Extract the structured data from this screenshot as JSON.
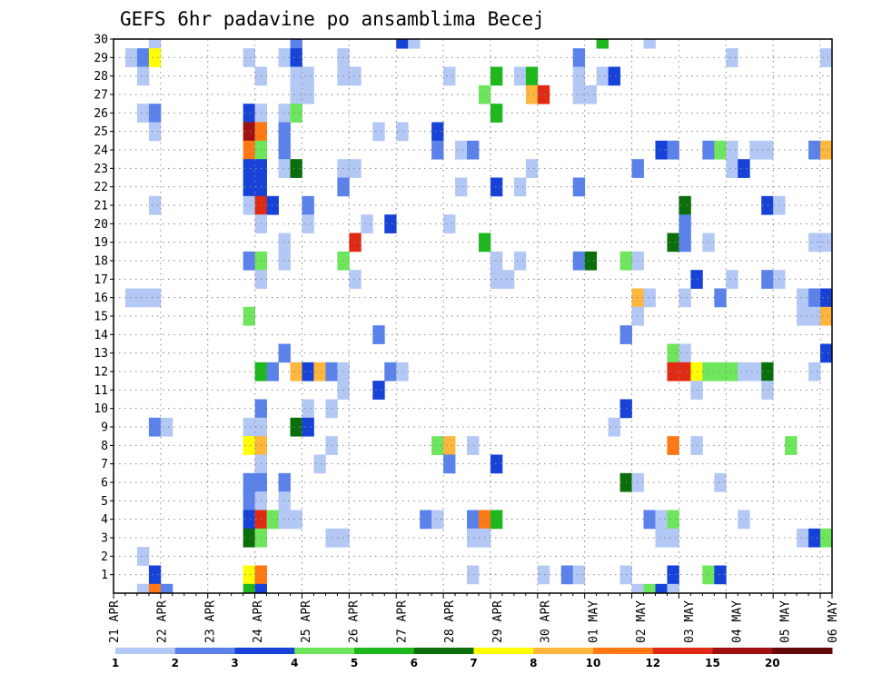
{
  "chart_data": {
    "type": "heatmap",
    "title": "GEFS 6hr padavine po ansamblima Becej",
    "y_categories": [
      1,
      2,
      3,
      4,
      5,
      6,
      7,
      8,
      9,
      10,
      11,
      12,
      13,
      14,
      15,
      16,
      17,
      18,
      19,
      20,
      21,
      22,
      23,
      24,
      25,
      26,
      27,
      28,
      29,
      30
    ],
    "x_tick_labels": [
      "21 APR",
      "22 APR",
      "23 APR",
      "24 APR",
      "25 APR",
      "26 APR",
      "27 APR",
      "28 APR",
      "29 APR",
      "30 APR",
      "01 MAY",
      "02 MAY",
      "03 MAY",
      "04 MAY",
      "05 MAY",
      "06 MAY"
    ],
    "x_steps": 61,
    "steps_per_day": 4,
    "grid": true,
    "legend": {
      "placement": "bottom",
      "labels": [
        "1",
        "2",
        "3",
        "4",
        "5",
        "6",
        "7",
        "8",
        "10",
        "12",
        "15",
        "20"
      ],
      "colors": [
        "#b4c8f5",
        "#5a82ea",
        "#1642d8",
        "#6ee65c",
        "#1cb81c",
        "#0a6e0a",
        "#ffff00",
        "#ffb63c",
        "#ff7814",
        "#e02a14",
        "#a01010",
        "#640808"
      ]
    },
    "cells": [
      [
        3,
        30,
        1
      ],
      [
        15,
        30,
        2
      ],
      [
        24,
        30,
        3
      ],
      [
        25,
        30,
        1
      ],
      [
        41,
        30,
        5
      ],
      [
        45,
        30,
        1
      ],
      [
        1,
        29,
        1
      ],
      [
        2,
        29,
        2
      ],
      [
        3,
        29,
        7
      ],
      [
        11,
        29,
        1
      ],
      [
        14,
        29,
        1
      ],
      [
        15,
        29,
        3
      ],
      [
        19,
        29,
        1
      ],
      [
        39,
        29,
        2
      ],
      [
        52,
        29,
        1
      ],
      [
        60,
        29,
        1
      ],
      [
        2,
        28,
        1
      ],
      [
        12,
        28,
        1
      ],
      [
        15,
        28,
        1
      ],
      [
        16,
        28,
        1
      ],
      [
        19,
        28,
        1
      ],
      [
        20,
        28,
        1
      ],
      [
        28,
        28,
        1
      ],
      [
        32,
        28,
        5
      ],
      [
        34,
        28,
        1
      ],
      [
        35,
        28,
        5
      ],
      [
        39,
        28,
        1
      ],
      [
        41,
        28,
        1
      ],
      [
        42,
        28,
        3
      ],
      [
        15,
        27,
        1
      ],
      [
        16,
        27,
        1
      ],
      [
        31,
        27,
        4
      ],
      [
        35,
        27,
        8
      ],
      [
        36,
        27,
        10
      ],
      [
        39,
        27,
        1
      ],
      [
        40,
        27,
        1
      ],
      [
        2,
        26,
        1
      ],
      [
        3,
        26,
        2
      ],
      [
        11,
        26,
        3
      ],
      [
        12,
        26,
        1
      ],
      [
        14,
        26,
        1
      ],
      [
        15,
        26,
        4
      ],
      [
        32,
        26,
        5
      ],
      [
        3,
        25,
        1
      ],
      [
        11,
        25,
        11
      ],
      [
        12,
        25,
        9
      ],
      [
        14,
        25,
        2
      ],
      [
        22,
        25,
        1
      ],
      [
        24,
        25,
        1
      ],
      [
        27,
        25,
        3
      ],
      [
        11,
        24,
        9
      ],
      [
        12,
        24,
        4
      ],
      [
        14,
        24,
        2
      ],
      [
        27,
        24,
        2
      ],
      [
        29,
        24,
        1
      ],
      [
        30,
        24,
        2
      ],
      [
        46,
        24,
        3
      ],
      [
        47,
        24,
        2
      ],
      [
        50,
        24,
        2
      ],
      [
        51,
        24,
        4
      ],
      [
        52,
        24,
        1
      ],
      [
        54,
        24,
        1
      ],
      [
        55,
        24,
        1
      ],
      [
        59,
        24,
        2
      ],
      [
        60,
        24,
        8
      ],
      [
        11,
        23,
        3
      ],
      [
        12,
        23,
        3
      ],
      [
        14,
        23,
        1
      ],
      [
        15,
        23,
        6
      ],
      [
        19,
        23,
        1
      ],
      [
        20,
        23,
        1
      ],
      [
        35,
        23,
        1
      ],
      [
        44,
        23,
        2
      ],
      [
        52,
        23,
        1
      ],
      [
        53,
        23,
        3
      ],
      [
        11,
        22,
        3
      ],
      [
        12,
        22,
        3
      ],
      [
        19,
        22,
        2
      ],
      [
        29,
        22,
        1
      ],
      [
        32,
        22,
        3
      ],
      [
        34,
        22,
        1
      ],
      [
        39,
        22,
        2
      ],
      [
        3,
        21,
        1
      ],
      [
        11,
        21,
        1
      ],
      [
        12,
        21,
        10
      ],
      [
        13,
        21,
        3
      ],
      [
        16,
        21,
        2
      ],
      [
        48,
        21,
        6
      ],
      [
        55,
        21,
        3
      ],
      [
        56,
        21,
        1
      ],
      [
        12,
        20,
        1
      ],
      [
        16,
        20,
        1
      ],
      [
        21,
        20,
        1
      ],
      [
        23,
        20,
        3
      ],
      [
        28,
        20,
        1
      ],
      [
        48,
        20,
        2
      ],
      [
        14,
        19,
        1
      ],
      [
        20,
        19,
        10
      ],
      [
        31,
        19,
        5
      ],
      [
        47,
        19,
        6
      ],
      [
        48,
        19,
        2
      ],
      [
        50,
        19,
        1
      ],
      [
        59,
        19,
        1
      ],
      [
        60,
        19,
        1
      ],
      [
        11,
        18,
        2
      ],
      [
        12,
        18,
        4
      ],
      [
        14,
        18,
        1
      ],
      [
        19,
        18,
        4
      ],
      [
        32,
        18,
        1
      ],
      [
        34,
        18,
        1
      ],
      [
        39,
        18,
        2
      ],
      [
        40,
        18,
        6
      ],
      [
        43,
        18,
        4
      ],
      [
        44,
        18,
        1
      ],
      [
        12,
        17,
        1
      ],
      [
        20,
        17,
        1
      ],
      [
        32,
        17,
        1
      ],
      [
        33,
        17,
        1
      ],
      [
        49,
        17,
        3
      ],
      [
        52,
        17,
        1
      ],
      [
        55,
        17,
        2
      ],
      [
        56,
        17,
        1
      ],
      [
        1,
        16,
        1
      ],
      [
        2,
        16,
        1
      ],
      [
        3,
        16,
        1
      ],
      [
        44,
        16,
        8
      ],
      [
        45,
        16,
        1
      ],
      [
        48,
        16,
        1
      ],
      [
        51,
        16,
        2
      ],
      [
        58,
        16,
        1
      ],
      [
        59,
        16,
        2
      ],
      [
        60,
        16,
        3
      ],
      [
        11,
        15,
        4
      ],
      [
        44,
        15,
        1
      ],
      [
        58,
        15,
        1
      ],
      [
        59,
        15,
        1
      ],
      [
        60,
        15,
        8
      ],
      [
        22,
        14,
        2
      ],
      [
        43,
        14,
        2
      ],
      [
        14,
        13,
        2
      ],
      [
        47,
        13,
        4
      ],
      [
        48,
        13,
        1
      ],
      [
        60,
        13,
        3
      ],
      [
        12,
        12,
        5
      ],
      [
        13,
        12,
        2
      ],
      [
        15,
        12,
        8
      ],
      [
        16,
        12,
        3
      ],
      [
        17,
        12,
        8
      ],
      [
        18,
        12,
        2
      ],
      [
        19,
        12,
        1
      ],
      [
        23,
        12,
        2
      ],
      [
        24,
        12,
        1
      ],
      [
        47,
        12,
        10
      ],
      [
        48,
        12,
        10
      ],
      [
        49,
        12,
        7
      ],
      [
        50,
        12,
        4
      ],
      [
        51,
        12,
        4
      ],
      [
        52,
        12,
        4
      ],
      [
        53,
        12,
        1
      ],
      [
        54,
        12,
        1
      ],
      [
        55,
        12,
        6
      ],
      [
        59,
        12,
        1
      ],
      [
        19,
        11,
        1
      ],
      [
        22,
        11,
        3
      ],
      [
        49,
        11,
        1
      ],
      [
        55,
        11,
        1
      ],
      [
        12,
        10,
        2
      ],
      [
        16,
        10,
        1
      ],
      [
        18,
        10,
        1
      ],
      [
        43,
        10,
        3
      ],
      [
        3,
        9,
        2
      ],
      [
        4,
        9,
        1
      ],
      [
        11,
        9,
        1
      ],
      [
        12,
        9,
        1
      ],
      [
        15,
        9,
        6
      ],
      [
        16,
        9,
        3
      ],
      [
        42,
        9,
        1
      ],
      [
        11,
        8,
        7
      ],
      [
        12,
        8,
        8
      ],
      [
        18,
        8,
        1
      ],
      [
        27,
        8,
        4
      ],
      [
        28,
        8,
        8
      ],
      [
        30,
        8,
        1
      ],
      [
        47,
        8,
        9
      ],
      [
        49,
        8,
        1
      ],
      [
        57,
        8,
        4
      ],
      [
        12,
        7,
        1
      ],
      [
        17,
        7,
        1
      ],
      [
        28,
        7,
        2
      ],
      [
        32,
        7,
        3
      ],
      [
        11,
        6,
        2
      ],
      [
        12,
        6,
        2
      ],
      [
        14,
        6,
        2
      ],
      [
        43,
        6,
        6
      ],
      [
        44,
        6,
        1
      ],
      [
        51,
        6,
        1
      ],
      [
        11,
        5,
        2
      ],
      [
        12,
        5,
        1
      ],
      [
        14,
        5,
        1
      ],
      [
        11,
        4,
        3
      ],
      [
        12,
        4,
        10
      ],
      [
        13,
        4,
        4
      ],
      [
        14,
        4,
        1
      ],
      [
        15,
        4,
        1
      ],
      [
        26,
        4,
        2
      ],
      [
        27,
        4,
        1
      ],
      [
        30,
        4,
        2
      ],
      [
        31,
        4,
        9
      ],
      [
        32,
        4,
        5
      ],
      [
        45,
        4,
        2
      ],
      [
        46,
        4,
        1
      ],
      [
        47,
        4,
        4
      ],
      [
        53,
        4,
        1
      ],
      [
        11,
        3,
        6
      ],
      [
        12,
        3,
        4
      ],
      [
        18,
        3,
        1
      ],
      [
        19,
        3,
        1
      ],
      [
        30,
        3,
        1
      ],
      [
        31,
        3,
        1
      ],
      [
        46,
        3,
        1
      ],
      [
        47,
        3,
        1
      ],
      [
        58,
        3,
        1
      ],
      [
        59,
        3,
        3
      ],
      [
        60,
        3,
        4
      ],
      [
        2,
        2,
        1
      ],
      [
        3,
        1,
        3
      ],
      [
        11,
        1,
        7
      ],
      [
        12,
        1,
        9
      ],
      [
        30,
        1,
        1
      ],
      [
        36,
        1,
        1
      ],
      [
        38,
        1,
        2
      ],
      [
        39,
        1,
        1
      ],
      [
        43,
        1,
        1
      ],
      [
        47,
        1,
        3
      ],
      [
        50,
        1,
        4
      ],
      [
        51,
        1,
        3
      ],
      [
        2,
        0,
        1
      ],
      [
        3,
        0,
        9
      ],
      [
        4,
        0,
        2
      ],
      [
        11,
        0,
        5
      ],
      [
        12,
        0,
        3
      ],
      [
        44,
        0,
        1
      ],
      [
        45,
        0,
        4
      ],
      [
        46,
        0,
        3
      ],
      [
        47,
        0,
        1
      ]
    ]
  }
}
